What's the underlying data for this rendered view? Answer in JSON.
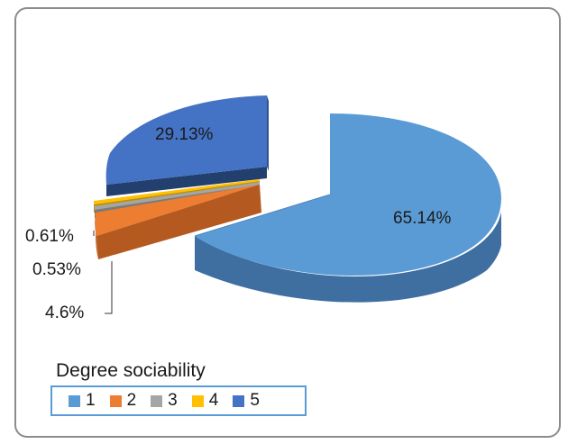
{
  "chart_data": {
    "type": "pie",
    "style": "3d-exploded",
    "legend_title": "Degree sociability",
    "legend_position": "bottom-left",
    "categories": [
      "1",
      "2",
      "3",
      "4",
      "5"
    ],
    "values": [
      65.14,
      4.6,
      0.53,
      0.61,
      29.13
    ],
    "data_labels": [
      "65.14%",
      "4.6%",
      "0.53%",
      "0.61%",
      "29.13%"
    ],
    "colors": [
      "#5b9bd5",
      "#ed7d31",
      "#a5a5a5",
      "#ffc000",
      "#4472c4"
    ]
  }
}
